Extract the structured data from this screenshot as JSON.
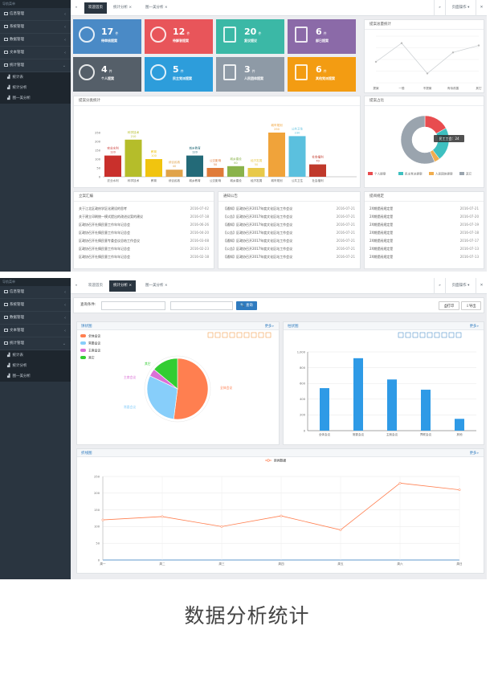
{
  "sidebar_header": "导航菜单",
  "sidebar1": [
    {
      "label": "信息管理",
      "arrow": "‹"
    },
    {
      "label": "系统管理",
      "arrow": "‹"
    },
    {
      "label": "数据管理",
      "arrow": "‹"
    },
    {
      "label": "文本管理",
      "arrow": "‹"
    },
    {
      "label": "统计管理",
      "arrow": "⌄"
    }
  ],
  "sidebar_sub": [
    "统计表",
    "统计分析",
    "图一美分析"
  ],
  "tabs1": [
    "欢迎首页",
    "统计分析 ×",
    "图一美分析 ×"
  ],
  "tabs2": [
    "欢迎首页",
    "统计分析 ×",
    "图一美分析 ×"
  ],
  "page_ops": "页面操作",
  "cards": [
    {
      "num": "17",
      "unit": "件",
      "label": "待审核提案",
      "color": "#4a8ac6"
    },
    {
      "num": "12",
      "unit": "件",
      "label": "待解答提案",
      "color": "#e8555a"
    },
    {
      "num": "20",
      "unit": "件",
      "label": "复议提议",
      "color": "#3bb8a6"
    },
    {
      "num": "6",
      "unit": "件",
      "label": "部已提案",
      "color": "#8b6aa8"
    },
    {
      "num": "4",
      "unit": "件",
      "label": "个人提案",
      "color": "#555f69"
    },
    {
      "num": "5",
      "unit": "件",
      "label": "民主党派提案",
      "color": "#2d9ddb"
    },
    {
      "num": "3",
      "unit": "件",
      "label": "人民团体提案",
      "color": "#8e9aa6"
    },
    {
      "num": "6",
      "unit": "件",
      "label": "其他党派提案",
      "color": "#f39c12"
    }
  ],
  "line_panel_title": "提案总量统计",
  "line_small": {
    "labels": [
      "提案",
      "一般",
      "不提案",
      "有待改善",
      "其它"
    ],
    "values": [
      0.45,
      0.85,
      0.2,
      0.65,
      0.8
    ]
  },
  "bar_panel_title": "提案分类统计",
  "bar1": {
    "yticks": [
      "250",
      "200",
      "150",
      "100",
      "50",
      "0"
    ],
    "max": 250,
    "items": [
      {
        "cat": "农业水利",
        "val": 120,
        "color": "#c9302c",
        "lbl": "农业水利"
      },
      {
        "cat": "科学技术",
        "val": 210,
        "color": "#b5bd2a",
        "lbl": "科学技术"
      },
      {
        "cat": "教育",
        "val": 100,
        "color": "#f1c40f",
        "lbl": "教育"
      },
      {
        "cat": "综合民政",
        "val": 40,
        "color": "#e0a34a",
        "lbl": "综合民政"
      },
      {
        "cat": "城乡教育",
        "val": 120,
        "color": "#236a78",
        "lbl": "城乡教育"
      },
      {
        "cat": "公交影响",
        "val": 50,
        "color": "#e07b39",
        "lbl": "公交影响"
      },
      {
        "cat": "城乡建设",
        "val": 60,
        "color": "#8ab34b",
        "lbl": "城乡建设"
      },
      {
        "cat": "经济发展",
        "val": 50,
        "color": "#e8c94a",
        "lbl": "经济发展"
      },
      {
        "cat": "城市规划",
        "val": 250,
        "color": "#f0a33a",
        "lbl": "城市规划"
      },
      {
        "cat": "公共卫生",
        "val": 230,
        "color": "#5bc0de",
        "lbl": "公共卫生"
      },
      {
        "cat": "社会福利",
        "val": 70,
        "color": "#c0392b",
        "lbl": "社会福利"
      }
    ]
  },
  "donut_panel_title": "提案占比",
  "donut_tip": "民工工会：24",
  "donut_legend": [
    "个人提案",
    "民主党派提案",
    "人民团体提案",
    "其它"
  ],
  "donut_colors": [
    "#e84c4f",
    "#3ec0c0",
    "#f0ad4e",
    "#9aa4ae"
  ],
  "donut_values": [
    18,
    24,
    4,
    60
  ],
  "notice1_title": "立案汇编",
  "notice1": [
    [
      "关于江北区政府学区化建设的思考",
      "2016-07-02"
    ],
    [
      "关于建立印刷统一模式提出的改进议案的建议",
      "2016-07-18"
    ],
    [
      "区政协召开社情民意工作年年记总会",
      "2016-06-26"
    ],
    [
      "区政协召开社情民意工作年年记总会",
      "2016-04-20"
    ],
    [
      "区政协召开社情民意专委会议总结工作会议",
      "2016-03-08"
    ],
    [
      "区政协召开社情民意工作年年记总会",
      "2016-02-23"
    ],
    [
      "区政协召开社情民意工作年年记总会",
      "2016-02-18"
    ]
  ],
  "notice2_title": "通知公告",
  "notice2": [
    [
      "【通知】区政协召开2017年度文化区站工作会议",
      "2016-07-21"
    ],
    [
      "【公告】区政协召开2017年度文化区站工作会议",
      "2016-07-21"
    ],
    [
      "【通知】区政协召开2017年度文化区站工作会议",
      "2016-07-21"
    ],
    [
      "【公告】区政协召开2017年度文化区站工作会议",
      "2016-07-21"
    ],
    [
      "【通知】区政协召开2017年度文化区站工作会议",
      "2016-07-21"
    ],
    [
      "【公告】区政协召开2017年度文化区站工作会议",
      "2016-07-21"
    ],
    [
      "【通知】区政协召开2017年度文化区站工作会议",
      "2016-07-21"
    ]
  ],
  "notice3_title": "提阅规定",
  "notice3": [
    [
      "2X期提阅规定是",
      "2016-07-21"
    ],
    [
      "2X期提阅规定是",
      "2016-07-20"
    ],
    [
      "2X期提阅规定是",
      "2016-07-19"
    ],
    [
      "2X期提阅规定是",
      "2016-07-18"
    ],
    [
      "2X期提阅规定是",
      "2016-07-17"
    ],
    [
      "2X期提阅规定是",
      "2016-07-13"
    ],
    [
      "2X期提阅规定是",
      "2016-07-13"
    ]
  ],
  "query_label": "查询条件:",
  "search_btn": "查询",
  "print_btn": "打印",
  "export_btn": "导出",
  "pie_title": "饼状图",
  "bar_title": "柱状图",
  "line_title": "折线图",
  "more": "更多»",
  "pie_legend": [
    "全体会议",
    "常委会议",
    "主席会议",
    "其它"
  ],
  "pie_colors": [
    "#ff7f50",
    "#87cefa",
    "#da70d6",
    "#32cd32"
  ],
  "pie_values": [
    52,
    30,
    4,
    14
  ],
  "bar2": {
    "cats": [
      "全体会议",
      "常委会议",
      "主席会议",
      "界联会议",
      "其他"
    ],
    "vals": [
      540,
      920,
      650,
      520,
      150
    ],
    "yticks": [
      "1,000",
      "800",
      "600",
      "400",
      "200",
      "0"
    ],
    "max": 1000
  },
  "line2": {
    "legend": "新闻数据",
    "cats": [
      "周一",
      "周二",
      "周三",
      "周四",
      "周五",
      "周六",
      "周日"
    ],
    "vals": [
      120,
      130,
      100,
      132,
      90,
      230,
      210
    ],
    "yticks": [
      "250",
      "200",
      "150",
      "100",
      "50",
      "0"
    ],
    "max": 250
  },
  "caption": "数据分析统计"
}
